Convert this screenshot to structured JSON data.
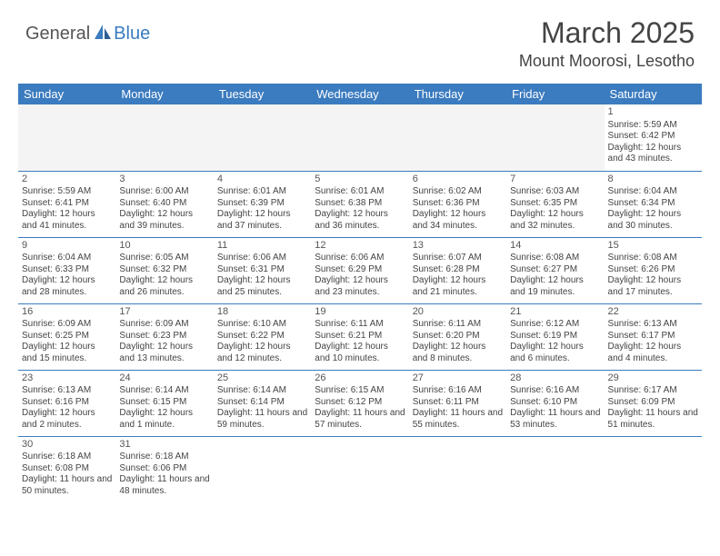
{
  "logo": {
    "general": "General",
    "blue": "Blue"
  },
  "title": "March 2025",
  "location": "Mount Moorosi, Lesotho",
  "colors": {
    "header_bg": "#3b7bbf",
    "header_text": "#ffffff",
    "border": "#3b7bbf",
    "text": "#444444",
    "shaded_bg": "#f4f4f4"
  },
  "weekdays": [
    "Sunday",
    "Monday",
    "Tuesday",
    "Wednesday",
    "Thursday",
    "Friday",
    "Saturday"
  ],
  "cells": [
    [
      {
        "day": "",
        "sunrise": "",
        "sunset": "",
        "daylight": ""
      },
      {
        "day": "",
        "sunrise": "",
        "sunset": "",
        "daylight": ""
      },
      {
        "day": "",
        "sunrise": "",
        "sunset": "",
        "daylight": ""
      },
      {
        "day": "",
        "sunrise": "",
        "sunset": "",
        "daylight": ""
      },
      {
        "day": "",
        "sunrise": "",
        "sunset": "",
        "daylight": ""
      },
      {
        "day": "",
        "sunrise": "",
        "sunset": "",
        "daylight": ""
      },
      {
        "day": "1",
        "sunrise": "Sunrise: 5:59 AM",
        "sunset": "Sunset: 6:42 PM",
        "daylight": "Daylight: 12 hours and 43 minutes."
      }
    ],
    [
      {
        "day": "2",
        "sunrise": "Sunrise: 5:59 AM",
        "sunset": "Sunset: 6:41 PM",
        "daylight": "Daylight: 12 hours and 41 minutes."
      },
      {
        "day": "3",
        "sunrise": "Sunrise: 6:00 AM",
        "sunset": "Sunset: 6:40 PM",
        "daylight": "Daylight: 12 hours and 39 minutes."
      },
      {
        "day": "4",
        "sunrise": "Sunrise: 6:01 AM",
        "sunset": "Sunset: 6:39 PM",
        "daylight": "Daylight: 12 hours and 37 minutes."
      },
      {
        "day": "5",
        "sunrise": "Sunrise: 6:01 AM",
        "sunset": "Sunset: 6:38 PM",
        "daylight": "Daylight: 12 hours and 36 minutes."
      },
      {
        "day": "6",
        "sunrise": "Sunrise: 6:02 AM",
        "sunset": "Sunset: 6:36 PM",
        "daylight": "Daylight: 12 hours and 34 minutes."
      },
      {
        "day": "7",
        "sunrise": "Sunrise: 6:03 AM",
        "sunset": "Sunset: 6:35 PM",
        "daylight": "Daylight: 12 hours and 32 minutes."
      },
      {
        "day": "8",
        "sunrise": "Sunrise: 6:04 AM",
        "sunset": "Sunset: 6:34 PM",
        "daylight": "Daylight: 12 hours and 30 minutes."
      }
    ],
    [
      {
        "day": "9",
        "sunrise": "Sunrise: 6:04 AM",
        "sunset": "Sunset: 6:33 PM",
        "daylight": "Daylight: 12 hours and 28 minutes."
      },
      {
        "day": "10",
        "sunrise": "Sunrise: 6:05 AM",
        "sunset": "Sunset: 6:32 PM",
        "daylight": "Daylight: 12 hours and 26 minutes."
      },
      {
        "day": "11",
        "sunrise": "Sunrise: 6:06 AM",
        "sunset": "Sunset: 6:31 PM",
        "daylight": "Daylight: 12 hours and 25 minutes."
      },
      {
        "day": "12",
        "sunrise": "Sunrise: 6:06 AM",
        "sunset": "Sunset: 6:29 PM",
        "daylight": "Daylight: 12 hours and 23 minutes."
      },
      {
        "day": "13",
        "sunrise": "Sunrise: 6:07 AM",
        "sunset": "Sunset: 6:28 PM",
        "daylight": "Daylight: 12 hours and 21 minutes."
      },
      {
        "day": "14",
        "sunrise": "Sunrise: 6:08 AM",
        "sunset": "Sunset: 6:27 PM",
        "daylight": "Daylight: 12 hours and 19 minutes."
      },
      {
        "day": "15",
        "sunrise": "Sunrise: 6:08 AM",
        "sunset": "Sunset: 6:26 PM",
        "daylight": "Daylight: 12 hours and 17 minutes."
      }
    ],
    [
      {
        "day": "16",
        "sunrise": "Sunrise: 6:09 AM",
        "sunset": "Sunset: 6:25 PM",
        "daylight": "Daylight: 12 hours and 15 minutes."
      },
      {
        "day": "17",
        "sunrise": "Sunrise: 6:09 AM",
        "sunset": "Sunset: 6:23 PM",
        "daylight": "Daylight: 12 hours and 13 minutes."
      },
      {
        "day": "18",
        "sunrise": "Sunrise: 6:10 AM",
        "sunset": "Sunset: 6:22 PM",
        "daylight": "Daylight: 12 hours and 12 minutes."
      },
      {
        "day": "19",
        "sunrise": "Sunrise: 6:11 AM",
        "sunset": "Sunset: 6:21 PM",
        "daylight": "Daylight: 12 hours and 10 minutes."
      },
      {
        "day": "20",
        "sunrise": "Sunrise: 6:11 AM",
        "sunset": "Sunset: 6:20 PM",
        "daylight": "Daylight: 12 hours and 8 minutes."
      },
      {
        "day": "21",
        "sunrise": "Sunrise: 6:12 AM",
        "sunset": "Sunset: 6:19 PM",
        "daylight": "Daylight: 12 hours and 6 minutes."
      },
      {
        "day": "22",
        "sunrise": "Sunrise: 6:13 AM",
        "sunset": "Sunset: 6:17 PM",
        "daylight": "Daylight: 12 hours and 4 minutes."
      }
    ],
    [
      {
        "day": "23",
        "sunrise": "Sunrise: 6:13 AM",
        "sunset": "Sunset: 6:16 PM",
        "daylight": "Daylight: 12 hours and 2 minutes."
      },
      {
        "day": "24",
        "sunrise": "Sunrise: 6:14 AM",
        "sunset": "Sunset: 6:15 PM",
        "daylight": "Daylight: 12 hours and 1 minute."
      },
      {
        "day": "25",
        "sunrise": "Sunrise: 6:14 AM",
        "sunset": "Sunset: 6:14 PM",
        "daylight": "Daylight: 11 hours and 59 minutes."
      },
      {
        "day": "26",
        "sunrise": "Sunrise: 6:15 AM",
        "sunset": "Sunset: 6:12 PM",
        "daylight": "Daylight: 11 hours and 57 minutes."
      },
      {
        "day": "27",
        "sunrise": "Sunrise: 6:16 AM",
        "sunset": "Sunset: 6:11 PM",
        "daylight": "Daylight: 11 hours and 55 minutes."
      },
      {
        "day": "28",
        "sunrise": "Sunrise: 6:16 AM",
        "sunset": "Sunset: 6:10 PM",
        "daylight": "Daylight: 11 hours and 53 minutes."
      },
      {
        "day": "29",
        "sunrise": "Sunrise: 6:17 AM",
        "sunset": "Sunset: 6:09 PM",
        "daylight": "Daylight: 11 hours and 51 minutes."
      }
    ],
    [
      {
        "day": "30",
        "sunrise": "Sunrise: 6:18 AM",
        "sunset": "Sunset: 6:08 PM",
        "daylight": "Daylight: 11 hours and 50 minutes."
      },
      {
        "day": "31",
        "sunrise": "Sunrise: 6:18 AM",
        "sunset": "Sunset: 6:06 PM",
        "daylight": "Daylight: 11 hours and 48 minutes."
      },
      {
        "day": "",
        "sunrise": "",
        "sunset": "",
        "daylight": ""
      },
      {
        "day": "",
        "sunrise": "",
        "sunset": "",
        "daylight": ""
      },
      {
        "day": "",
        "sunrise": "",
        "sunset": "",
        "daylight": ""
      },
      {
        "day": "",
        "sunrise": "",
        "sunset": "",
        "daylight": ""
      },
      {
        "day": "",
        "sunrise": "",
        "sunset": "",
        "daylight": ""
      }
    ]
  ]
}
